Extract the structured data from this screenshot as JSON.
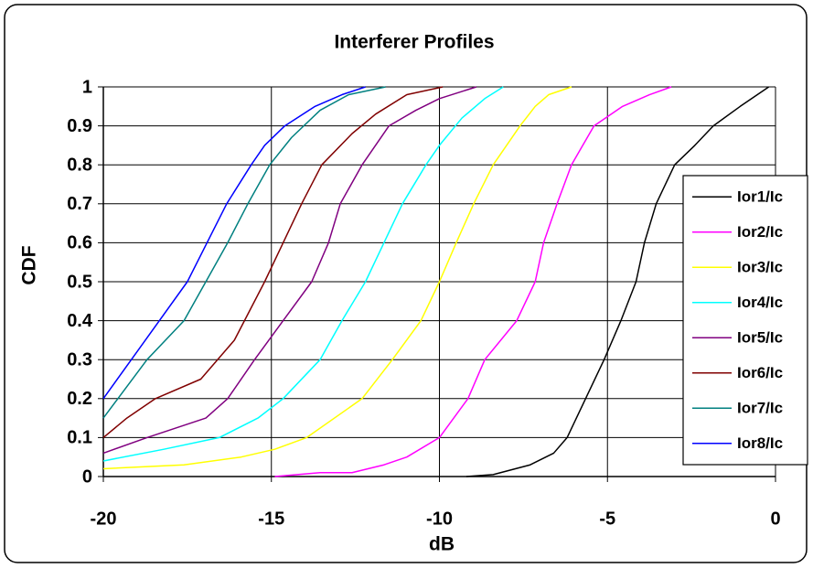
{
  "chart_data": {
    "type": "line",
    "title": "Interferer Profiles",
    "x_label": "dB",
    "y_label": "CDF",
    "xlim": [
      -20,
      0
    ],
    "ylim": [
      0,
      1
    ],
    "xticks": [
      -20,
      -15,
      -10,
      -5,
      0
    ],
    "yticks": [
      0,
      0.1,
      0.2,
      0.3,
      0.4,
      0.5,
      0.6,
      0.7,
      0.8,
      0.9,
      1
    ],
    "grid": true,
    "legend": "right",
    "series": [
      {
        "name": "Ior1/Ic",
        "color": "#000000",
        "x": [
          -9.2,
          -8.4,
          -7.3,
          -6.6,
          -6.2,
          -5.65,
          -5.1,
          -4.6,
          -4.15,
          -3.9,
          -3.55,
          -3.0,
          -2.4,
          -1.85,
          -1.05,
          -0.2
        ],
        "values": [
          0,
          0.005,
          0.03,
          0.06,
          0.1,
          0.2,
          0.3,
          0.4,
          0.5,
          0.6,
          0.7,
          0.8,
          0.85,
          0.9,
          0.95,
          1
        ]
      },
      {
        "name": "Ior2/Ic",
        "color": "#ff00ff",
        "x": [
          -14.9,
          -13.55,
          -12.6,
          -11.65,
          -10.97,
          -10.0,
          -9.15,
          -8.65,
          -7.7,
          -7.15,
          -6.9,
          -6.5,
          -6.07,
          -5.4,
          -4.55,
          -3.75,
          -3.1
        ],
        "values": [
          0,
          0.01,
          0.01,
          0.03,
          0.05,
          0.1,
          0.2,
          0.3,
          0.4,
          0.5,
          0.6,
          0.7,
          0.8,
          0.9,
          0.95,
          0.98,
          1
        ]
      },
      {
        "name": "Ior3/Ic",
        "color": "#ffff00",
        "x": [
          -20,
          -17.6,
          -15.9,
          -14.9,
          -13.95,
          -12.3,
          -11.4,
          -10.55,
          -10.0,
          -9.5,
          -8.98,
          -8.4,
          -7.6,
          -7.15,
          -6.75,
          -6.07
        ],
        "values": [
          0.02,
          0.03,
          0.05,
          0.07,
          0.1,
          0.2,
          0.3,
          0.4,
          0.5,
          0.6,
          0.7,
          0.8,
          0.9,
          0.95,
          0.98,
          1
        ]
      },
      {
        "name": "Ior4/Ic",
        "color": "#00ffff",
        "x": [
          -20,
          -18.2,
          -16.55,
          -15.4,
          -14.65,
          -13.55,
          -12.9,
          -12.2,
          -11.65,
          -11.1,
          -10.4,
          -10.0,
          -9.33,
          -8.65,
          -8.1
        ],
        "values": [
          0.04,
          0.07,
          0.1,
          0.15,
          0.2,
          0.3,
          0.4,
          0.5,
          0.6,
          0.7,
          0.8,
          0.85,
          0.92,
          0.97,
          1
        ]
      },
      {
        "name": "Ior5/Ic",
        "color": "#800080",
        "x": [
          -20,
          -18.7,
          -16.95,
          -16.3,
          -15.5,
          -14.65,
          -13.8,
          -13.3,
          -12.95,
          -12.3,
          -11.5,
          -10.7,
          -10.0,
          -8.9
        ],
        "values": [
          0.06,
          0.1,
          0.15,
          0.2,
          0.3,
          0.4,
          0.5,
          0.6,
          0.7,
          0.8,
          0.9,
          0.94,
          0.97,
          1
        ]
      },
      {
        "name": "Ior6/Ic",
        "color": "#800000",
        "x": [
          -20,
          -19.3,
          -18.45,
          -17.1,
          -16.1,
          -15.2,
          -14.65,
          -14.1,
          -13.5,
          -12.6,
          -11.9,
          -10.97,
          -9.9
        ],
        "values": [
          0.1,
          0.15,
          0.2,
          0.25,
          0.35,
          0.5,
          0.6,
          0.7,
          0.8,
          0.88,
          0.93,
          0.98,
          1
        ]
      },
      {
        "name": "Ior7/Ic",
        "color": "#008080",
        "x": [
          -20,
          -18.7,
          -17.6,
          -16.95,
          -16.3,
          -15.7,
          -15.05,
          -14.4,
          -13.55,
          -12.7,
          -11.6
        ],
        "values": [
          0.15,
          0.3,
          0.4,
          0.5,
          0.6,
          0.7,
          0.8,
          0.87,
          0.94,
          0.98,
          1
        ]
      },
      {
        "name": "Ior8/Ic",
        "color": "#0000ff",
        "x": [
          -20,
          -17.5,
          -16.33,
          -15.6,
          -15.2,
          -14.6,
          -13.7,
          -12.9,
          -12.2
        ],
        "values": [
          0.2,
          0.5,
          0.7,
          0.8,
          0.85,
          0.9,
          0.95,
          0.98,
          1
        ]
      }
    ]
  }
}
